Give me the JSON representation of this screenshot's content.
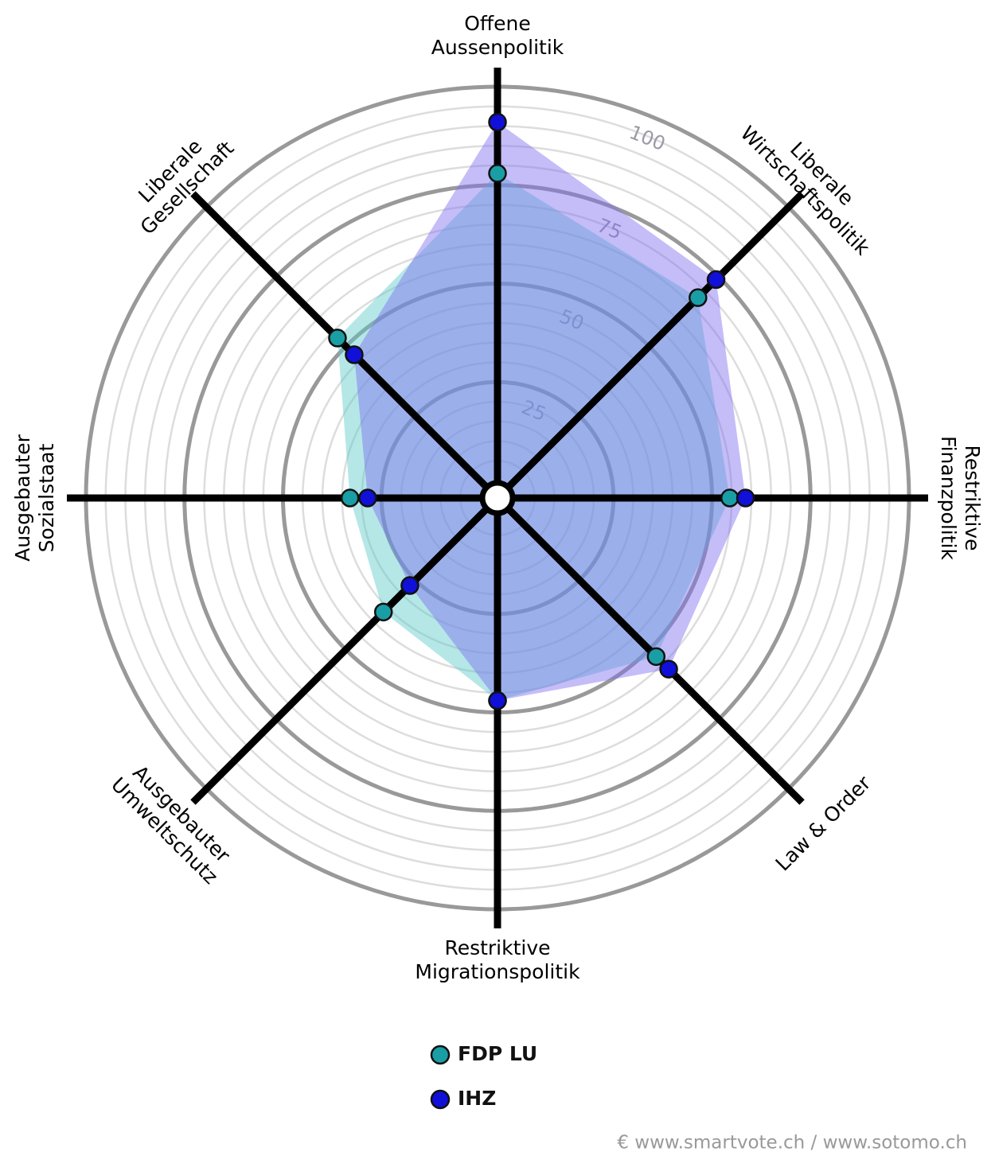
{
  "chart_data": {
    "type": "radar",
    "axes": [
      [
        "Offene",
        "Aussenpolitik"
      ],
      [
        "Liberale",
        "Wirtschaftspolitik"
      ],
      [
        "Restriktive",
        "Finanzpolitik"
      ],
      [
        "Law & Order"
      ],
      [
        "Restriktive",
        "Migrationspolitik"
      ],
      [
        "Ausgebauter",
        "Umweltschutz"
      ],
      [
        "Ausgebauter",
        "Sozialstaat"
      ],
      [
        "Liberale",
        "Gesellschaft"
      ]
    ],
    "series": [
      {
        "name": "FDP LU",
        "color": "#1a9ea6",
        "fill": "#5cc9c9",
        "values": [
          78,
          67.5,
          54.5,
          52.5,
          47,
          36.5,
          33,
          53
        ]
      },
      {
        "name": "IHZ",
        "color": "#1010d8",
        "fill": "#7c6cf0",
        "values": [
          91,
          74,
          58.5,
          57,
          47,
          27,
          28.5,
          47
        ]
      }
    ],
    "rlim": [
      0,
      100
    ],
    "rticks": [
      25,
      50,
      75,
      100
    ],
    "grid": true,
    "source": "€ www.smartvote.ch / www.sotomo.ch"
  }
}
